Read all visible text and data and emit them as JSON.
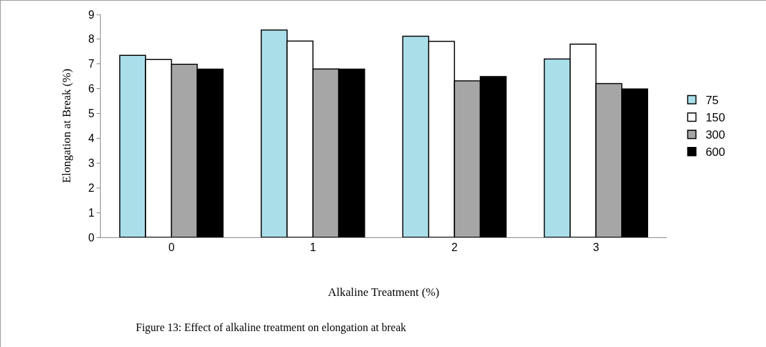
{
  "chart_data": {
    "type": "bar",
    "xlabel": "Alkaline Treatment (%)",
    "ylabel": "Elongation at Break (%)",
    "categories": [
      "0",
      "1",
      "2",
      "3"
    ],
    "series": [
      {
        "name": "75",
        "color": "#aadfea",
        "values": [
          7.35,
          8.37,
          8.12,
          7.2
        ]
      },
      {
        "name": "150",
        "color": "#ffffff",
        "values": [
          7.18,
          7.93,
          7.91,
          7.8
        ]
      },
      {
        "name": "300",
        "color": "#a6a6a6",
        "values": [
          6.99,
          6.8,
          6.32,
          6.21
        ]
      },
      {
        "name": "600",
        "color": "#000000",
        "values": [
          6.79,
          6.79,
          6.49,
          5.99
        ]
      }
    ],
    "ylim": [
      0,
      9
    ],
    "yticks": [
      0,
      1,
      2,
      3,
      4,
      5,
      6,
      7,
      8,
      9
    ],
    "grid": false,
    "legend": "right",
    "annotations": [
      "Figure 13: Effect of alkaline treatment on elongation at break"
    ]
  }
}
